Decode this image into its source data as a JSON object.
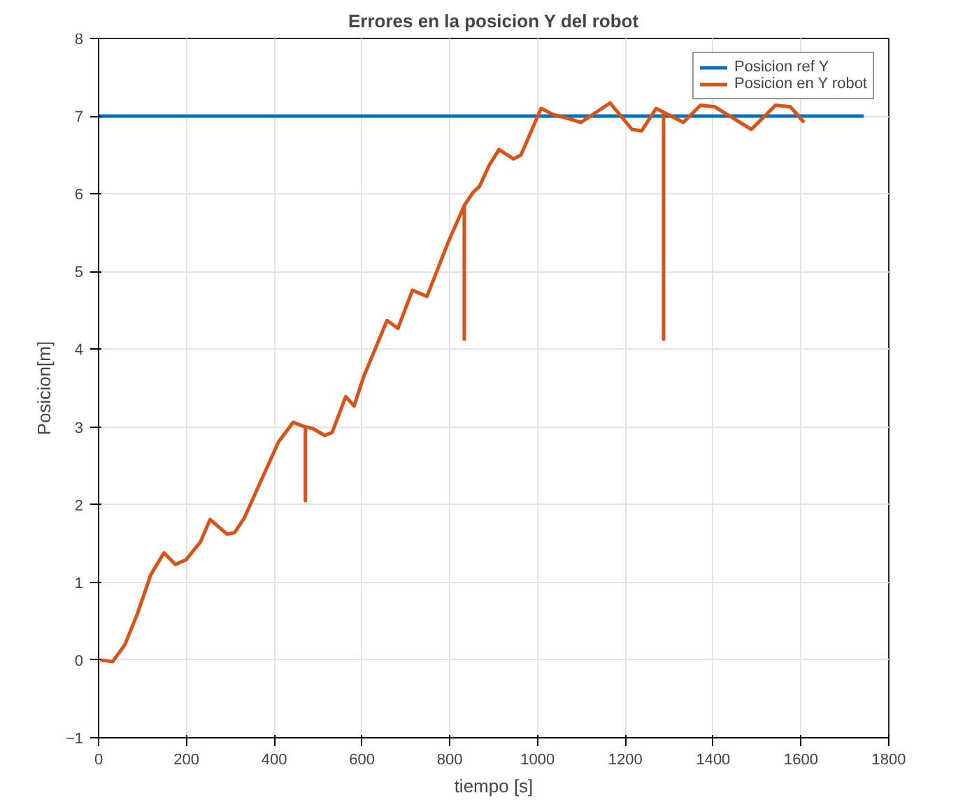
{
  "chart_data": {
    "type": "line",
    "title": "Errores en la posicion Y del robot",
    "xlabel": "tiempo [s]",
    "ylabel": "Posicion[m]",
    "xlim": [
      0,
      1800
    ],
    "xticks": [
      0,
      200,
      400,
      600,
      800,
      1000,
      1200,
      1400,
      1600,
      1800
    ],
    "ylim": [
      -1,
      8
    ],
    "yticks": [
      -1,
      0,
      1,
      2,
      3,
      4,
      5,
      6,
      7,
      8
    ],
    "grid": true,
    "legend": "top right",
    "series": [
      {
        "name": "Posicion ref Y",
        "color": "#0072bd",
        "x": [
          0,
          1743
        ],
        "values": [
          7,
          7
        ]
      },
      {
        "name": "Posicion en Y robot",
        "color": "#d95319",
        "x": [
          4,
          32,
          60,
          88,
          119,
          149,
          175,
          199,
          232,
          254,
          293,
          310,
          332,
          410,
          443,
          471,
          471,
          471,
          488,
          515,
          532,
          563,
          582,
          604,
          657,
          682,
          715,
          748,
          798,
          833,
          833,
          833,
          853,
          868,
          890,
          912,
          945,
          962,
          1008,
          1036,
          1069,
          1099,
          1165,
          1215,
          1237,
          1270,
          1287,
          1287,
          1287,
          1332,
          1371,
          1404,
          1487,
          1542,
          1576,
          1607
        ],
        "values": [
          0,
          -0.02,
          0.2,
          0.59,
          1.1,
          1.38,
          1.23,
          1.29,
          1.52,
          1.81,
          1.62,
          1.64,
          1.83,
          2.81,
          3.06,
          3.0,
          2.05,
          3.0,
          2.98,
          2.89,
          2.93,
          3.39,
          3.27,
          3.65,
          4.37,
          4.27,
          4.76,
          4.68,
          5.4,
          5.85,
          4.13,
          5.85,
          6.02,
          6.1,
          6.37,
          6.57,
          6.45,
          6.5,
          7.1,
          7.02,
          6.97,
          6.92,
          7.17,
          6.83,
          6.81,
          7.1,
          7.05,
          4.13,
          7.05,
          6.92,
          7.14,
          7.12,
          6.83,
          7.14,
          7.12,
          6.92
        ]
      }
    ]
  }
}
